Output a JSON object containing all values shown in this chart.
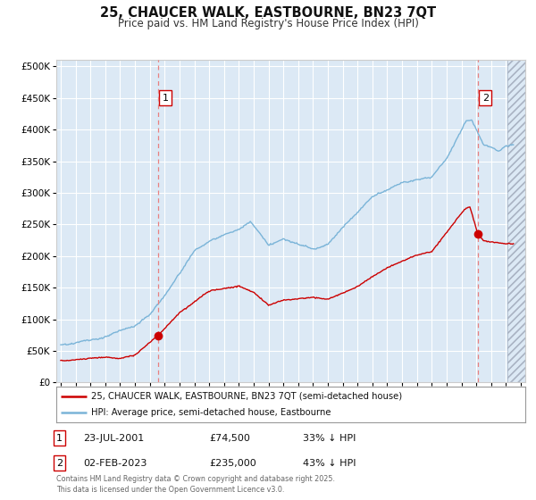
{
  "title": "25, CHAUCER WALK, EASTBOURNE, BN23 7QT",
  "subtitle": "Price paid vs. HM Land Registry's House Price Index (HPI)",
  "background_color": "#ffffff",
  "plot_bg_color": "#dce9f5",
  "ylabel_ticks": [
    "£0",
    "£50K",
    "£100K",
    "£150K",
    "£200K",
    "£250K",
    "£300K",
    "£350K",
    "£400K",
    "£450K",
    "£500K"
  ],
  "ytick_values": [
    0,
    50000,
    100000,
    150000,
    200000,
    250000,
    300000,
    350000,
    400000,
    450000,
    500000
  ],
  "ylim": [
    0,
    510000
  ],
  "xlim_start": 1994.7,
  "xlim_end": 2026.3,
  "sale1_date": 2001.55,
  "sale1_price": 74500,
  "sale1_label": "1",
  "sale2_date": 2023.09,
  "sale2_price": 235000,
  "sale2_label": "2",
  "legend_line1": "25, CHAUCER WALK, EASTBOURNE, BN23 7QT (semi-detached house)",
  "legend_line2": "HPI: Average price, semi-detached house, Eastbourne",
  "table_row1": [
    "1",
    "23-JUL-2001",
    "£74,500",
    "33% ↓ HPI"
  ],
  "table_row2": [
    "2",
    "02-FEB-2023",
    "£235,000",
    "43% ↓ HPI"
  ],
  "footer": "Contains HM Land Registry data © Crown copyright and database right 2025.\nThis data is licensed under the Open Government Licence v3.0.",
  "hpi_color": "#7ab4d8",
  "sale_color": "#cc0000",
  "vline_color": "#e88080",
  "grid_color": "#ffffff",
  "border_color": "#aaaaaa",
  "future_start": 2025.08
}
